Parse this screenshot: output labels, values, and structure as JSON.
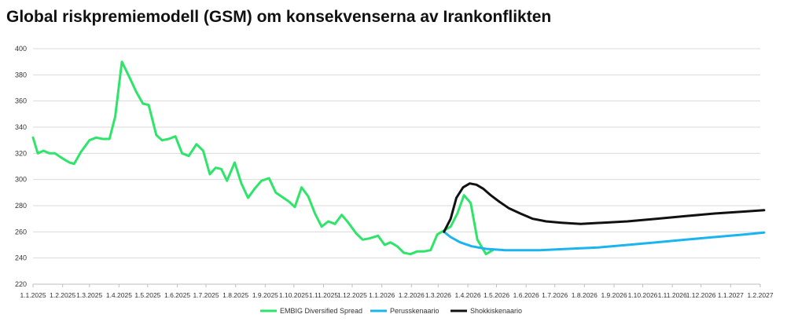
{
  "chart_data": {
    "type": "line",
    "title": "Global riskpremiemodell (GSM) om konsekvenserna av Irankonflikten",
    "xlabel": "",
    "ylabel": "",
    "ylim": [
      220,
      400
    ],
    "yticks": [
      220,
      240,
      260,
      280,
      300,
      320,
      340,
      360,
      380,
      400
    ],
    "xlim": [
      "2025-01-01",
      "2027-02-01"
    ],
    "xtick_labels": [
      "1.1.2025",
      "1.2.2025",
      "1.3.2025",
      "1.4.2025",
      "1.5.2025",
      "1.6.2025",
      "1.7.2025",
      "1.8.2025",
      "1.9.2025",
      "1.10.2025",
      "1.11.2025",
      "1.12.2025",
      "1.1.2026",
      "1.2.2026",
      "1.3.2026",
      "1.4.2026",
      "1.5.2026",
      "1.6.2026",
      "1.7.2026",
      "1.8.2026",
      "1.9.2026",
      "1.10.2026",
      "1.11.2026",
      "1.12.2026",
      "1.1.2027",
      "1.2.2027"
    ],
    "grid": "horizontal",
    "legend_position": "bottom",
    "series": [
      {
        "name": "EMBIG Diversified Spread",
        "color": "#2ee56a",
        "points": [
          [
            "2025-01-01",
            332
          ],
          [
            "2025-01-06",
            320
          ],
          [
            "2025-01-12",
            322
          ],
          [
            "2025-01-18",
            320
          ],
          [
            "2025-01-24",
            320
          ],
          [
            "2025-01-30",
            317
          ],
          [
            "2025-02-08",
            313
          ],
          [
            "2025-02-13",
            312
          ],
          [
            "2025-02-20",
            321
          ],
          [
            "2025-03-01",
            330
          ],
          [
            "2025-03-08",
            332
          ],
          [
            "2025-03-15",
            331
          ],
          [
            "2025-03-22",
            331
          ],
          [
            "2025-03-28",
            348
          ],
          [
            "2025-04-04",
            390
          ],
          [
            "2025-04-12",
            378
          ],
          [
            "2025-04-19",
            367
          ],
          [
            "2025-04-26",
            358
          ],
          [
            "2025-05-02",
            357
          ],
          [
            "2025-05-10",
            334
          ],
          [
            "2025-05-16",
            330
          ],
          [
            "2025-05-23",
            331
          ],
          [
            "2025-05-30",
            333
          ],
          [
            "2025-06-06",
            320
          ],
          [
            "2025-06-13",
            318
          ],
          [
            "2025-06-21",
            327
          ],
          [
            "2025-06-28",
            322
          ],
          [
            "2025-07-05",
            304
          ],
          [
            "2025-07-11",
            309
          ],
          [
            "2025-07-17",
            308
          ],
          [
            "2025-07-23",
            299
          ],
          [
            "2025-07-31",
            313
          ],
          [
            "2025-08-07",
            297
          ],
          [
            "2025-08-14",
            286
          ],
          [
            "2025-08-21",
            293
          ],
          [
            "2025-08-28",
            299
          ],
          [
            "2025-09-05",
            301
          ],
          [
            "2025-09-12",
            290
          ],
          [
            "2025-09-20",
            286
          ],
          [
            "2025-09-26",
            283
          ],
          [
            "2025-10-02",
            279
          ],
          [
            "2025-10-09",
            294
          ],
          [
            "2025-10-16",
            287
          ],
          [
            "2025-10-23",
            274
          ],
          [
            "2025-10-30",
            264
          ],
          [
            "2025-11-06",
            268
          ],
          [
            "2025-11-13",
            266
          ],
          [
            "2025-11-20",
            273
          ],
          [
            "2025-11-27",
            267
          ],
          [
            "2025-12-05",
            259
          ],
          [
            "2025-12-12",
            254
          ],
          [
            "2025-12-19",
            255
          ],
          [
            "2025-12-28",
            257
          ],
          [
            "2026-01-04",
            250
          ],
          [
            "2026-01-10",
            252
          ],
          [
            "2026-01-17",
            249
          ],
          [
            "2026-01-24",
            244
          ],
          [
            "2026-01-31",
            243
          ],
          [
            "2026-02-07",
            245
          ],
          [
            "2026-02-14",
            245
          ],
          [
            "2026-02-21",
            246
          ],
          [
            "2026-02-28",
            258
          ],
          [
            "2026-03-07",
            261
          ],
          [
            "2026-03-14",
            264
          ],
          [
            "2026-03-21",
            274
          ],
          [
            "2026-03-28",
            288
          ],
          [
            "2026-04-04",
            282
          ],
          [
            "2026-04-11",
            254
          ],
          [
            "2026-04-20",
            243
          ],
          [
            "2026-04-27",
            246
          ]
        ]
      },
      {
        "name": "Perusskenaario",
        "color": "#1ab4ef",
        "points": [
          [
            "2026-03-07",
            260
          ],
          [
            "2026-03-14",
            256
          ],
          [
            "2026-03-24",
            252
          ],
          [
            "2026-04-05",
            249
          ],
          [
            "2026-04-20",
            247
          ],
          [
            "2026-05-10",
            246
          ],
          [
            "2026-06-15",
            246
          ],
          [
            "2026-07-15",
            247
          ],
          [
            "2026-08-15",
            248
          ],
          [
            "2026-09-15",
            250
          ],
          [
            "2026-10-15",
            252
          ],
          [
            "2026-11-15",
            254
          ],
          [
            "2026-12-15",
            256
          ],
          [
            "2027-01-15",
            258
          ],
          [
            "2027-02-05",
            259.5
          ]
        ]
      },
      {
        "name": "Shokkiskenaario",
        "color": "#111111",
        "points": [
          [
            "2026-03-07",
            260
          ],
          [
            "2026-03-14",
            270
          ],
          [
            "2026-03-20",
            286
          ],
          [
            "2026-03-27",
            294
          ],
          [
            "2026-04-03",
            297
          ],
          [
            "2026-04-10",
            296
          ],
          [
            "2026-04-17",
            293
          ],
          [
            "2026-04-25",
            288
          ],
          [
            "2026-05-04",
            283
          ],
          [
            "2026-05-14",
            278
          ],
          [
            "2026-05-26",
            274
          ],
          [
            "2026-06-08",
            270
          ],
          [
            "2026-06-22",
            268
          ],
          [
            "2026-07-08",
            267
          ],
          [
            "2026-07-28",
            266
          ],
          [
            "2026-08-20",
            267
          ],
          [
            "2026-09-15",
            268
          ],
          [
            "2026-10-15",
            270
          ],
          [
            "2026-11-15",
            272
          ],
          [
            "2026-12-15",
            274
          ],
          [
            "2027-01-15",
            275.5
          ],
          [
            "2027-02-05",
            276.5
          ]
        ]
      }
    ]
  }
}
